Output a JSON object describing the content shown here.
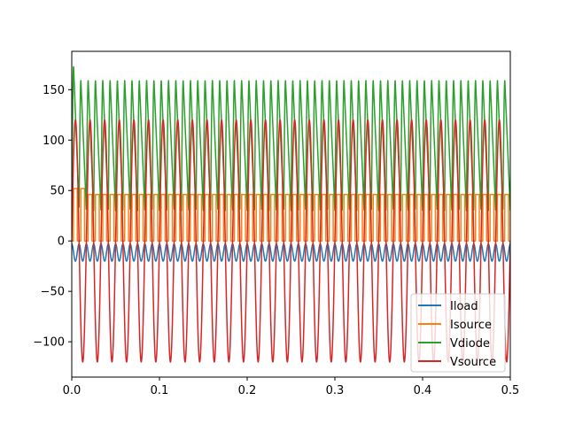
{
  "chart_data": {
    "type": "line",
    "title": "",
    "xlabel": "",
    "ylabel": "",
    "xlim": [
      0.0,
      0.5
    ],
    "ylim": [
      -135,
      188
    ],
    "x_ticks": [
      0.0,
      0.1,
      0.2,
      0.3,
      0.4,
      0.5
    ],
    "x_tick_labels": [
      "0.0",
      "0.1",
      "0.2",
      "0.3",
      "0.4",
      "0.5"
    ],
    "y_ticks": [
      -100,
      -50,
      0,
      50,
      100,
      150
    ],
    "y_tick_labels": [
      "−100",
      "−50",
      "0",
      "50",
      "100",
      "150"
    ],
    "grid": false,
    "legend_position": "lower-right",
    "frequency_hz": 60,
    "t_range": [
      0.0,
      0.5
    ],
    "series": [
      {
        "name": "Iload",
        "color": "#1f77b4",
        "range": [
          -20,
          -3
        ],
        "description": "negative ripple current"
      },
      {
        "name": "Isource",
        "color": "#ff7f0e",
        "range": [
          0,
          52
        ],
        "description": "pulsed source current"
      },
      {
        "name": "Vdiode",
        "color": "#2ca02c",
        "range": [
          30,
          173
        ],
        "description": "diode voltage, first peak 173, then ~160"
      },
      {
        "name": "Vsource",
        "color": "#d62728",
        "range": [
          -120,
          120
        ],
        "description": "60 Hz sinusoid, amplitude 120"
      }
    ]
  }
}
